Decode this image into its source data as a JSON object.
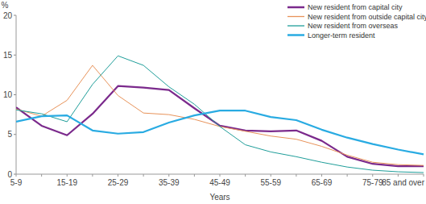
{
  "chart_data": {
    "type": "line",
    "y_label": "%",
    "x_label": "Years",
    "categories": [
      "5-9",
      null,
      "15-19",
      null,
      "25-29",
      null,
      "35-39",
      null,
      "45-49",
      null,
      "55-59",
      null,
      "65-69",
      null,
      "75-79",
      null,
      "85 and over"
    ],
    "series": [
      {
        "name": "New resident from capital city",
        "color": "#7b2a8c",
        "values": [
          8.4,
          6.1,
          4.9,
          7.6,
          11.1,
          10.9,
          10.6,
          8.3,
          6.1,
          5.5,
          5.4,
          5.5,
          4.2,
          2.2,
          1.3,
          1.0,
          1.0
        ]
      },
      {
        "name": "New resident from outside capital city",
        "color": "#e8935a",
        "values": [
          8.2,
          7.3,
          9.3,
          13.7,
          9.9,
          7.7,
          7.5,
          6.9,
          6.0,
          5.4,
          4.8,
          4.4,
          3.5,
          2.4,
          1.5,
          1.2,
          1.1
        ]
      },
      {
        "name": "New resident from overseas",
        "color": "#1f9e9a",
        "values": [
          8.1,
          7.6,
          6.6,
          11.3,
          14.9,
          13.7,
          11.0,
          8.8,
          6.0,
          3.7,
          2.8,
          2.2,
          1.5,
          0.9,
          0.5,
          0.3,
          0.2
        ]
      },
      {
        "name": "Longer-term resident",
        "color": "#29abe2",
        "values": [
          6.6,
          7.3,
          7.4,
          5.5,
          5.1,
          5.3,
          6.5,
          7.4,
          8.0,
          8.0,
          7.2,
          6.8,
          5.6,
          4.6,
          3.8,
          3.1,
          2.5
        ]
      }
    ],
    "ylim": [
      0,
      20
    ],
    "yticks": [
      0,
      5,
      10,
      15,
      20
    ],
    "grid": false,
    "legend": "top right"
  }
}
